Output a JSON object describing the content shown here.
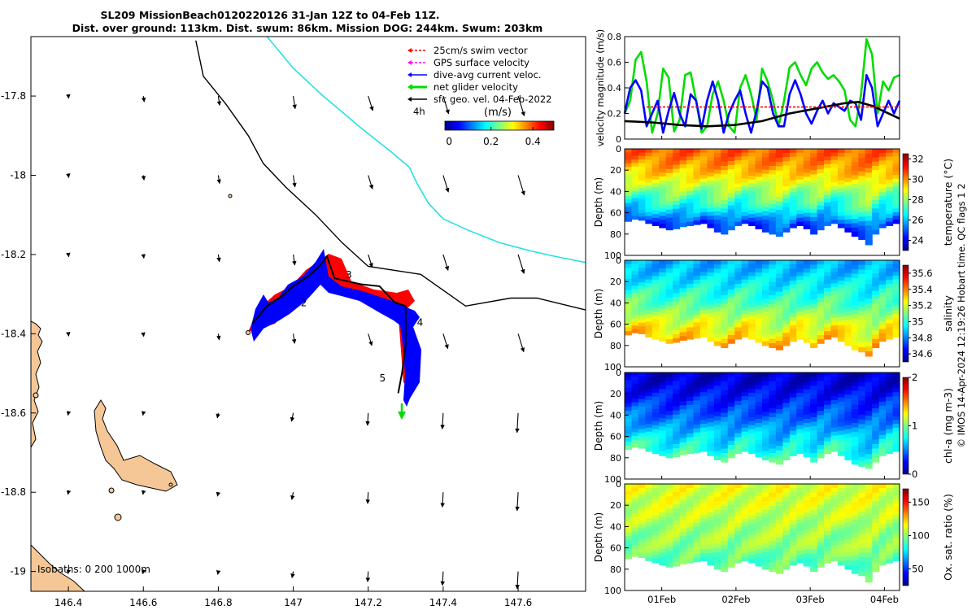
{
  "header": {
    "title_line1": "SL209 MissionBeach0120220126 31-Jan 12Z to 04-Feb 11Z.",
    "title_line2": "Dist. over ground: 113km. Dist. swum: 86km. Mission DOG: 244km. Swum: 203km"
  },
  "colors": {
    "land": "#f6c796",
    "coast_line": "#000000",
    "shelf_line": "#27e1e1",
    "glider_red": "#ff0000",
    "glider_blue": "#0000ff",
    "net_velocity": "#00dd00",
    "gps_velocity": "#ff00ff",
    "swim_vector": "#ff0000"
  },
  "chart_data": [
    {
      "type": "map",
      "name": "glider-track-map",
      "xlim": [
        146.3,
        147.78
      ],
      "ylim": [
        -19.05,
        -17.65
      ],
      "x_ticks": [
        146.4,
        146.6,
        146.8,
        147,
        147.2,
        147.4,
        147.6
      ],
      "x_tick_labels": [
        "146.4",
        "146.6",
        "146.8",
        "147",
        "147.2",
        "147.4",
        "147.6"
      ],
      "y_ticks": [
        -17.8,
        -18,
        -18.2,
        -18.4,
        -18.6,
        -18.8,
        -19
      ],
      "y_tick_labels": [
        "-17.8",
        "-18",
        "-18.2",
        "-18.4",
        "-18.6",
        "-18.8",
        "-19"
      ],
      "legend": {
        "position": "top-right",
        "entries": [
          {
            "label": "25cm/s swim vector",
            "color": "#ff0000",
            "style": "dashed-arrow"
          },
          {
            "label": "GPS surface velocity",
            "color": "#ff00ff",
            "style": "dashed-arrow"
          },
          {
            "label": "dive-avg current veloc.",
            "color": "#0000ff",
            "style": "arrow"
          },
          {
            "label": "net glider velocity",
            "color": "#00dd00",
            "style": "thick-arrow"
          },
          {
            "label": "sfc geo. vel. 04-Feb-2022",
            "color": "#000000",
            "style": "arrow"
          }
        ],
        "timestep_label": "4h"
      },
      "colorbar": {
        "label": "(m/s)",
        "ticks": [
          0,
          0.2,
          0.4
        ],
        "tick_labels": [
          "0",
          "0.2",
          "0.4"
        ],
        "range": [
          -0.02,
          0.5
        ],
        "colormap": "jet"
      },
      "isobaths_label": "Isobaths: 0   200  1000m",
      "day_markers": [
        {
          "label": "2",
          "lon": 147.02,
          "lat": -18.33
        },
        {
          "label": "3",
          "lon": 147.14,
          "lat": -18.26
        },
        {
          "label": "4",
          "lon": 147.33,
          "lat": -18.38
        },
        {
          "label": "5",
          "lon": 147.23,
          "lat": -18.52
        }
      ],
      "glider_track": [
        [
          146.89,
          -18.375
        ],
        [
          146.93,
          -18.33
        ],
        [
          146.97,
          -18.305
        ],
        [
          147.0,
          -18.28
        ],
        [
          147.04,
          -18.255
        ],
        [
          147.07,
          -18.23
        ],
        [
          147.09,
          -18.205
        ],
        [
          147.11,
          -18.26
        ],
        [
          147.18,
          -18.275
        ],
        [
          147.23,
          -18.28
        ],
        [
          147.27,
          -18.32
        ],
        [
          147.3,
          -18.33
        ],
        [
          147.3,
          -18.43
        ],
        [
          147.29,
          -18.5
        ],
        [
          147.28,
          -18.55
        ]
      ],
      "isobath_200m": [
        [
          146.74,
          -17.66
        ],
        [
          146.76,
          -17.75
        ],
        [
          146.82,
          -17.82
        ],
        [
          146.88,
          -17.9
        ],
        [
          146.92,
          -17.97
        ],
        [
          146.98,
          -18.03
        ],
        [
          147.06,
          -18.1
        ],
        [
          147.13,
          -18.17
        ],
        [
          147.2,
          -18.23
        ],
        [
          147.34,
          -18.25
        ],
        [
          147.46,
          -18.33
        ],
        [
          147.58,
          -18.31
        ],
        [
          147.65,
          -18.31
        ],
        [
          147.78,
          -18.34
        ]
      ],
      "isobath_1000m": [
        [
          146.93,
          -17.65
        ],
        [
          147.0,
          -17.73
        ],
        [
          147.08,
          -17.8
        ],
        [
          147.18,
          -17.88
        ],
        [
          147.26,
          -17.94
        ],
        [
          147.31,
          -17.98
        ],
        [
          147.33,
          -18.02
        ],
        [
          147.36,
          -18.07
        ],
        [
          147.4,
          -18.11
        ],
        [
          147.47,
          -18.14
        ],
        [
          147.55,
          -18.17
        ],
        [
          147.63,
          -18.19
        ],
        [
          147.7,
          -18.205
        ],
        [
          147.78,
          -18.22
        ]
      ]
    },
    {
      "type": "line",
      "name": "velocity-magnitude",
      "ylabel": "velocity magnitude (m/s)",
      "ylim": [
        0,
        0.8
      ],
      "y_ticks": [
        0,
        0.2,
        0.4,
        0.6,
        0.8
      ],
      "y_tick_labels": [
        "0",
        "0.2",
        "0.4",
        "0.6",
        "0.8"
      ],
      "xlim": [
        0,
        1
      ],
      "series": [
        {
          "color": "#00dd00",
          "x": [
            0,
            0.02,
            0.04,
            0.06,
            0.08,
            0.1,
            0.12,
            0.14,
            0.16,
            0.18,
            0.2,
            0.22,
            0.24,
            0.26,
            0.28,
            0.3,
            0.32,
            0.34,
            0.36,
            0.38,
            0.4,
            0.42,
            0.44,
            0.46,
            0.48,
            0.5,
            0.52,
            0.54,
            0.56,
            0.58,
            0.6,
            0.62,
            0.64,
            0.66,
            0.68,
            0.7,
            0.72,
            0.74,
            0.76,
            0.78,
            0.8,
            0.82,
            0.84,
            0.86,
            0.88,
            0.9,
            0.92,
            0.94,
            0.96,
            0.98,
            1.0
          ],
          "y": [
            0.2,
            0.3,
            0.62,
            0.68,
            0.45,
            0.05,
            0.2,
            0.55,
            0.48,
            0.06,
            0.15,
            0.5,
            0.52,
            0.3,
            0.05,
            0.1,
            0.35,
            0.45,
            0.3,
            0.1,
            0.05,
            0.4,
            0.5,
            0.35,
            0.15,
            0.55,
            0.45,
            0.3,
            0.1,
            0.3,
            0.56,
            0.6,
            0.5,
            0.42,
            0.55,
            0.6,
            0.52,
            0.47,
            0.5,
            0.45,
            0.38,
            0.15,
            0.1,
            0.35,
            0.78,
            0.66,
            0.2,
            0.45,
            0.38,
            0.48,
            0.5
          ]
        },
        {
          "color": "#0000ff",
          "x": [
            0,
            0.02,
            0.04,
            0.06,
            0.08,
            0.1,
            0.12,
            0.14,
            0.16,
            0.18,
            0.2,
            0.22,
            0.24,
            0.26,
            0.28,
            0.3,
            0.32,
            0.34,
            0.36,
            0.38,
            0.4,
            0.42,
            0.44,
            0.46,
            0.48,
            0.5,
            0.52,
            0.54,
            0.56,
            0.58,
            0.6,
            0.62,
            0.64,
            0.66,
            0.68,
            0.7,
            0.72,
            0.74,
            0.76,
            0.78,
            0.8,
            0.82,
            0.84,
            0.86,
            0.88,
            0.9,
            0.92,
            0.94,
            0.96,
            0.98,
            1.0
          ],
          "y": [
            0.2,
            0.4,
            0.46,
            0.38,
            0.1,
            0.2,
            0.3,
            0.05,
            0.22,
            0.36,
            0.2,
            0.1,
            0.35,
            0.3,
            0.08,
            0.3,
            0.45,
            0.3,
            0.05,
            0.2,
            0.3,
            0.38,
            0.2,
            0.05,
            0.22,
            0.45,
            0.4,
            0.2,
            0.1,
            0.1,
            0.35,
            0.46,
            0.35,
            0.2,
            0.12,
            0.22,
            0.3,
            0.2,
            0.28,
            0.25,
            0.22,
            0.3,
            0.28,
            0.15,
            0.5,
            0.4,
            0.1,
            0.2,
            0.3,
            0.2,
            0.3
          ]
        },
        {
          "color": "#000000",
          "x": [
            0,
            0.1,
            0.2,
            0.3,
            0.4,
            0.5,
            0.6,
            0.7,
            0.8,
            0.85,
            0.9,
            0.95,
            1.0
          ],
          "y": [
            0.14,
            0.13,
            0.11,
            0.1,
            0.11,
            0.14,
            0.2,
            0.24,
            0.28,
            0.29,
            0.26,
            0.21,
            0.16
          ]
        },
        {
          "color": "#ff0000",
          "style": "dashed",
          "x": [
            0.08,
            1.0
          ],
          "y": [
            0.25,
            0.25
          ]
        }
      ]
    },
    {
      "type": "heatmap",
      "name": "temperature-section",
      "ylabel": "Depth (m)",
      "ylim": [
        100,
        0
      ],
      "y_ticks": [
        0,
        20,
        40,
        60,
        80,
        100
      ],
      "y_tick_labels": [
        "0",
        "20",
        "40",
        "60",
        "80",
        "100"
      ],
      "colorbar": {
        "label": "temperature (°C)",
        "ticks": [
          24,
          26,
          28,
          30,
          32
        ],
        "tick_labels": [
          "24",
          "26",
          "28",
          "30",
          "32"
        ],
        "range": [
          23,
          32.5
        ]
      },
      "surface_value": 30.5,
      "deep_value": 24.5,
      "bottom_depth": [
        68,
        66,
        67,
        70,
        72,
        74,
        76,
        75,
        73,
        72,
        71,
        70,
        74,
        78,
        80,
        76,
        72,
        70,
        72,
        75,
        78,
        80,
        82,
        78,
        74,
        72,
        75,
        80,
        76,
        72,
        70,
        74,
        78,
        82,
        85,
        90,
        80,
        74,
        72,
        70
      ]
    },
    {
      "type": "heatmap",
      "name": "salinity-section",
      "ylabel": "Depth (m)",
      "ylim": [
        100,
        0
      ],
      "y_ticks": [
        0,
        20,
        40,
        60,
        80,
        100
      ],
      "y_tick_labels": [
        "0",
        "20",
        "40",
        "60",
        "80",
        "100"
      ],
      "colorbar": {
        "label": "salinity",
        "ticks": [
          34.6,
          34.8,
          35,
          35.2,
          35.4,
          35.6
        ],
        "tick_labels": [
          "34.6",
          "34.8",
          "35",
          "35.2",
          "35.4",
          "35.6"
        ],
        "range": [
          34.5,
          35.7
        ]
      },
      "surface_value": 34.85,
      "deep_value": 35.35,
      "bottom_depth": [
        70,
        68,
        69,
        72,
        74,
        76,
        78,
        77,
        75,
        74,
        73,
        72,
        76,
        80,
        82,
        78,
        74,
        72,
        74,
        77,
        80,
        82,
        84,
        80,
        76,
        74,
        77,
        82,
        78,
        74,
        72,
        76,
        80,
        84,
        86,
        90,
        82,
        76,
        74,
        72
      ]
    },
    {
      "type": "heatmap",
      "name": "chlorophyll-section",
      "ylabel": "Depth (m)",
      "ylim": [
        100,
        0
      ],
      "y_ticks": [
        0,
        20,
        40,
        60,
        80,
        100
      ],
      "y_tick_labels": [
        "0",
        "20",
        "40",
        "60",
        "80",
        "100"
      ],
      "colorbar": {
        "label": "chl-a (mg m-3)",
        "ticks": [
          0,
          1,
          2
        ],
        "tick_labels": [
          "0",
          "1",
          "2"
        ],
        "range": [
          0,
          2
        ]
      },
      "surface_value": 0.15,
      "deep_value": 0.9,
      "bottom_depth": [
        72,
        70,
        71,
        74,
        76,
        78,
        80,
        79,
        77,
        76,
        75,
        74,
        78,
        82,
        84,
        80,
        76,
        74,
        76,
        79,
        82,
        84,
        86,
        82,
        78,
        76,
        79,
        84,
        80,
        76,
        74,
        78,
        82,
        86,
        88,
        90,
        84,
        78,
        76,
        74
      ]
    },
    {
      "type": "heatmap",
      "name": "oxygen-section",
      "ylabel": "Depth (m)",
      "ylim": [
        100,
        0
      ],
      "y_ticks": [
        0,
        20,
        40,
        60,
        80,
        100
      ],
      "y_tick_labels": [
        "0",
        "20",
        "40",
        "60",
        "80",
        "100"
      ],
      "colorbar": {
        "label": "Ox. sat. ratio (%)",
        "ticks": [
          50,
          100,
          150
        ],
        "tick_labels": [
          "50",
          "100",
          "150"
        ],
        "range": [
          25,
          170
        ]
      },
      "surface_value": 112,
      "deep_value": 92,
      "bottom_depth": [
        70,
        68,
        69,
        72,
        74,
        76,
        78,
        77,
        75,
        74,
        73,
        72,
        76,
        80,
        82,
        78,
        74,
        72,
        74,
        77,
        80,
        82,
        84,
        80,
        76,
        74,
        77,
        82,
        78,
        74,
        72,
        76,
        80,
        84,
        86,
        92,
        82,
        76,
        74,
        72
      ]
    }
  ],
  "time_axis": {
    "ticks": [
      0.135,
      0.405,
      0.675,
      0.945
    ],
    "tick_labels": [
      "01Feb",
      "02Feb",
      "03Feb",
      "04Feb"
    ]
  },
  "footer": {
    "credit": "© IMOS 14-Apr-2024 12:19:26 Hobart time. QC flags 1  2"
  }
}
